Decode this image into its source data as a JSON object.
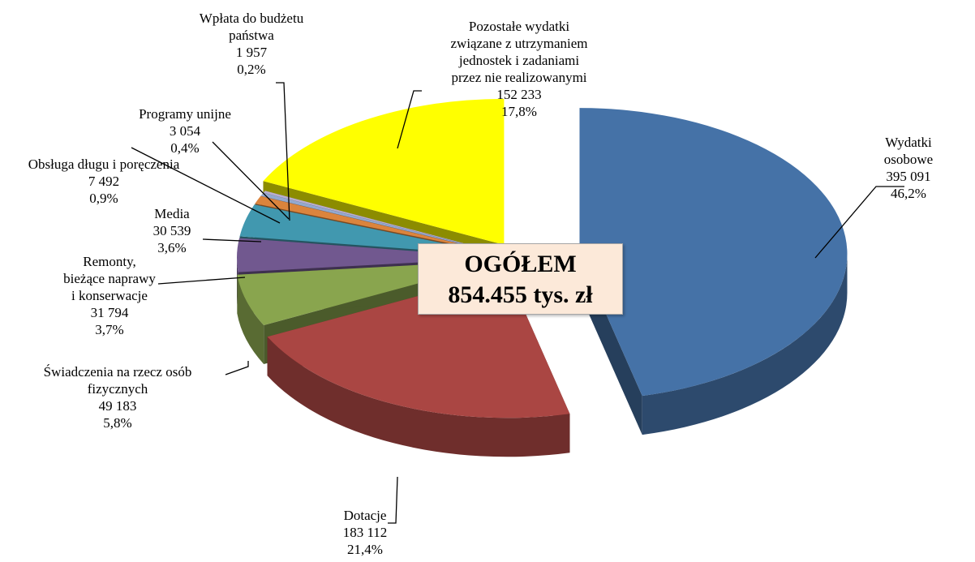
{
  "chart_data": {
    "type": "pie",
    "categories": [
      "Wydatki osobowe",
      "Dotacje",
      "Świadczenia na rzecz osób\nfizycznych",
      "Remonty,\nbieżące naprawy\ni konserwacje",
      "Media",
      "Obsługa długu i poręczenia",
      "Programy unijne",
      "Wpłata do budżetu\npaństwa",
      "Pozostałe wydatki\nzwiązane z utrzymaniem\njednostek i zadaniami\nprzez nie realizowanymi"
    ],
    "values": [
      395091,
      183112,
      49183,
      31794,
      30539,
      7492,
      3054,
      1957,
      152233
    ],
    "value_labels": [
      "395 091",
      "183 112",
      "49 183",
      "31 794",
      "30 539",
      "7 492",
      "3 054",
      "1 957",
      "152 233"
    ],
    "percents": [
      46.2,
      21.4,
      5.8,
      3.7,
      3.6,
      0.9,
      0.4,
      0.2,
      17.8
    ],
    "percent_labels": [
      "46,2%",
      "21,4%",
      "5,8%",
      "3,7%",
      "3,6%",
      "0,9%",
      "0,4%",
      "0,2%",
      "17,8%"
    ],
    "colors": [
      "#4572a7",
      "#aa4643",
      "#89a54e",
      "#71588f",
      "#4198af",
      "#db843d",
      "#93a9cf",
      "#b9aed0",
      "#ffff00"
    ],
    "annotation": "OGÓŁEM",
    "total_label": "854.455 tys. zł"
  }
}
